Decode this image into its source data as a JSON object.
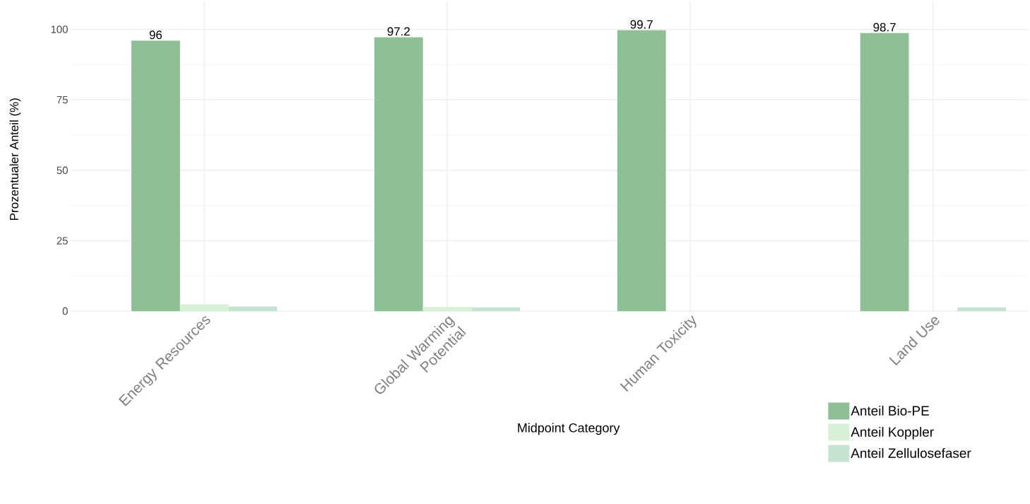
{
  "chart_data": {
    "type": "bar",
    "xlabel": "Midpoint Category",
    "ylabel": "Prozentualer Anteil (%)",
    "categories": [
      "Energy Resources",
      "Global Warming Potential",
      "Human Toxicity",
      "Land Use"
    ],
    "series": [
      {
        "name": "Anteil Bio-PE",
        "color": "#8fbf97",
        "values": [
          96,
          97.2,
          99.7,
          98.7
        ],
        "value_labels": [
          "96",
          "97.2",
          "99.7",
          "98.7"
        ]
      },
      {
        "name": "Anteil Koppler",
        "color": "#d8f1d6",
        "values": [
          2.4,
          1.5,
          null,
          0
        ]
      },
      {
        "name": "Anteil Zellulosefaser",
        "color": "#c6e3d1",
        "values": [
          1.6,
          1.3,
          null,
          1.3
        ]
      }
    ],
    "ylim": [
      0,
      100
    ],
    "yticks": [
      0,
      25,
      50,
      75,
      100
    ],
    "grid": true,
    "legend": "bottom right"
  }
}
